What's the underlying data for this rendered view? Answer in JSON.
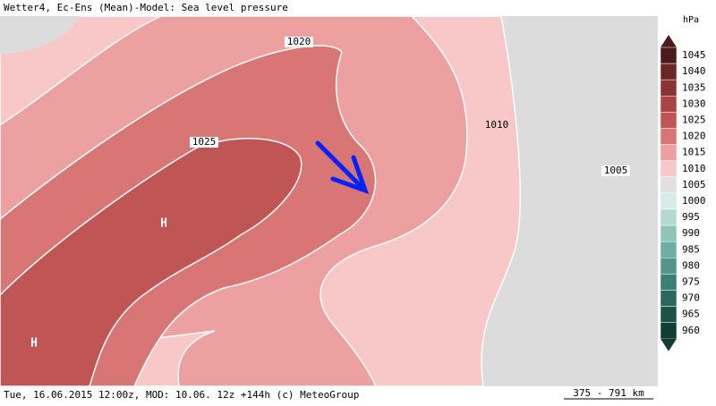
{
  "header": {
    "title": "Wetter4, Ec-Ens (Mean)-Model: Sea level pressure"
  },
  "footer": {
    "info": "Tue, 16.06.2015 12:00z, MOD: 10.06. 12z +144h (c) MeteoGroup",
    "scale": "375 - 791 km"
  },
  "legend": {
    "unit": "hPa",
    "items": [
      {
        "label": "1045",
        "color": "#4d1a1a"
      },
      {
        "label": "1040",
        "color": "#6b2626"
      },
      {
        "label": "1035",
        "color": "#8a3535"
      },
      {
        "label": "1030",
        "color": "#a84444"
      },
      {
        "label": "1025",
        "color": "#c05555"
      },
      {
        "label": "1020",
        "color": "#d87575"
      },
      {
        "label": "1015",
        "color": "#eda0a0"
      },
      {
        "label": "1010",
        "color": "#f8c8c8"
      },
      {
        "label": "1005",
        "color": "#e0e0e0"
      },
      {
        "label": "1000",
        "color": "#d6ece8"
      },
      {
        "label": "995",
        "color": "#b3d9d1"
      },
      {
        "label": "990",
        "color": "#8fc4b9"
      },
      {
        "label": "985",
        "color": "#6eaea1"
      },
      {
        "label": "980",
        "color": "#529688"
      },
      {
        "label": "975",
        "color": "#3c7e71"
      },
      {
        "label": "970",
        "color": "#2c675b"
      },
      {
        "label": "965",
        "color": "#1f5247"
      },
      {
        "label": "960",
        "color": "#133d34"
      }
    ]
  },
  "map": {
    "isobar_labels": [
      "1020",
      "1025",
      "1005",
      "1010"
    ],
    "highs": [
      "H",
      "H"
    ]
  }
}
